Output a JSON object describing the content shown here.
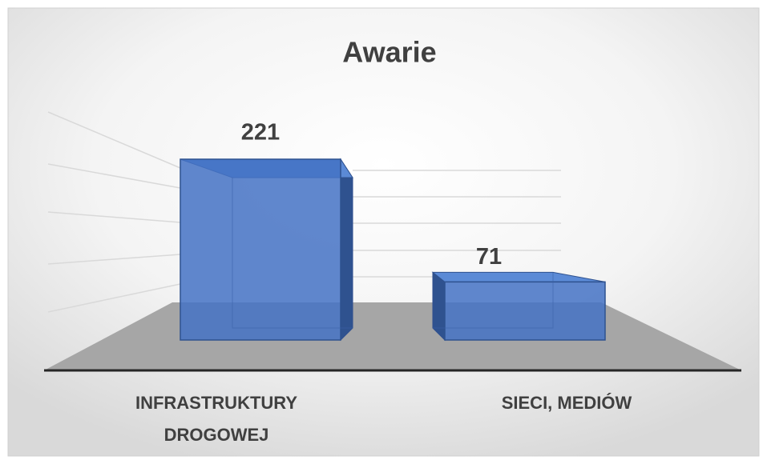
{
  "chart_data": {
    "type": "bar3d",
    "title": "Awarie",
    "categories": [
      "INFRASTRUKTURY DROGOWEJ",
      "SIECI, MEDIÓW"
    ],
    "values": [
      221,
      71
    ],
    "color": "#4472c4"
  }
}
